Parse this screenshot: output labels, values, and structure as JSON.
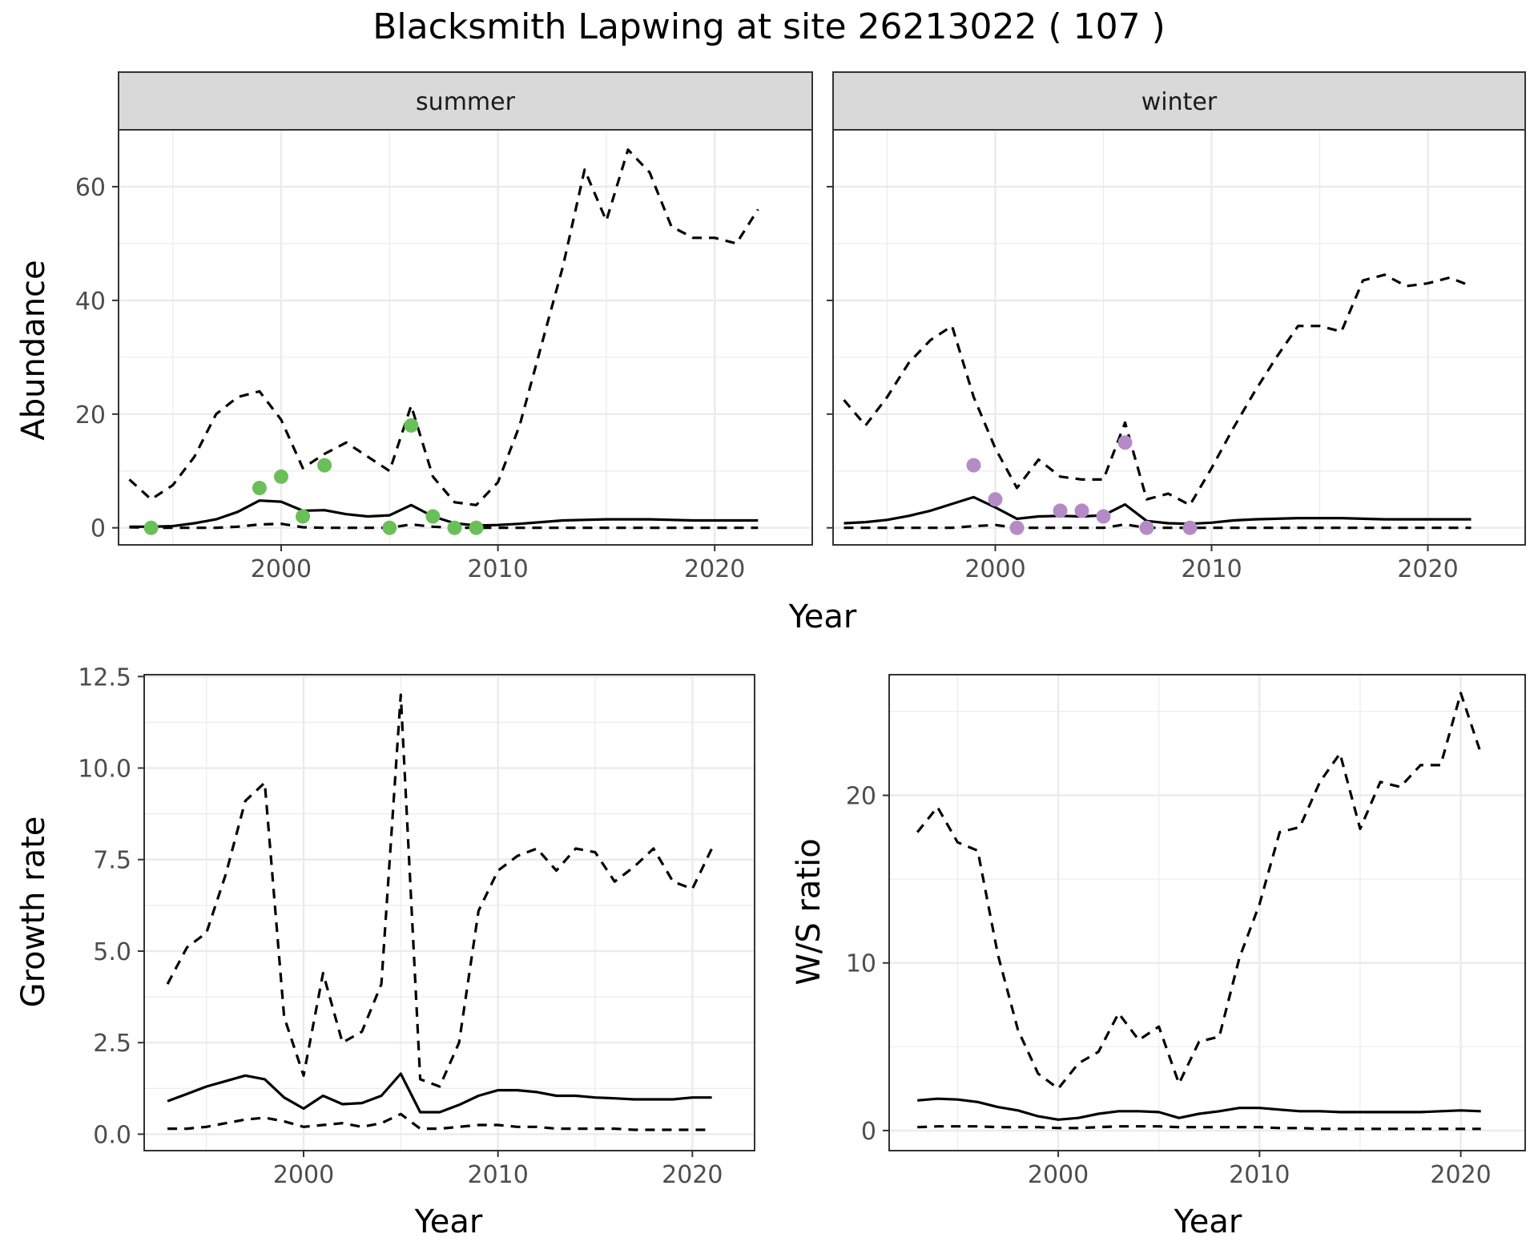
{
  "title": "Blacksmith Lapwing at site 26213022 ( 107 )",
  "style": {
    "summer_point_color": "#6bbf59",
    "winter_point_color": "#b58bc6",
    "strip_fill": "#d9d9d9",
    "grid_color": "#ebebeb",
    "line_color": "#000000"
  },
  "chart_data": [
    {
      "type": "line",
      "facet": "summer",
      "xlabel": "Year",
      "ylabel": "Abundance",
      "shared_xlabel": true,
      "xlim": [
        1992.5,
        2024.5
      ],
      "ylim": [
        -3,
        70
      ],
      "xticks": [
        2000,
        2010,
        2020
      ],
      "yticks": [
        0,
        20,
        40,
        60
      ],
      "ytick_labels": [
        "0",
        "20",
        "40",
        "60"
      ],
      "series": [
        {
          "role": "mean",
          "dash": "solid",
          "x": [
            1993,
            1994,
            1995,
            1996,
            1997,
            1998,
            1999,
            2000,
            2001,
            2002,
            2003,
            2004,
            2005,
            2006,
            2007,
            2008,
            2009,
            2010,
            2011,
            2012,
            2013,
            2014,
            2015,
            2016,
            2017,
            2018,
            2019,
            2020,
            2021,
            2022
          ],
          "y": [
            0.2,
            0.2,
            0.3,
            0.8,
            1.5,
            2.8,
            4.8,
            4.6,
            3.0,
            3.1,
            2.4,
            2.0,
            2.2,
            4.0,
            2.0,
            0.8,
            0.4,
            0.5,
            0.7,
            1.0,
            1.3,
            1.4,
            1.5,
            1.5,
            1.5,
            1.4,
            1.3,
            1.3,
            1.3,
            1.3
          ]
        },
        {
          "role": "upper",
          "dash": "dashed",
          "x": [
            1993,
            1994,
            1995,
            1996,
            1997,
            1998,
            1999,
            2000,
            2001,
            2002,
            2003,
            2004,
            2005,
            2006,
            2007,
            2008,
            2009,
            2010,
            2011,
            2012,
            2013,
            2014,
            2015,
            2016,
            2017,
            2018,
            2019,
            2020,
            2021,
            2022
          ],
          "y": [
            8.5,
            5,
            7.5,
            12.5,
            20,
            23,
            24,
            19,
            10.5,
            13,
            15,
            12.5,
            10,
            21.5,
            9,
            4.5,
            4,
            8,
            18,
            32,
            46,
            63,
            54,
            66.5,
            62.5,
            53,
            51,
            51,
            50,
            56
          ]
        },
        {
          "role": "lower",
          "dash": "dashed",
          "x": [
            1993,
            1994,
            1995,
            1996,
            1997,
            1998,
            1999,
            2000,
            2001,
            2002,
            2003,
            2004,
            2005,
            2006,
            2007,
            2008,
            2009,
            2010,
            2011,
            2012,
            2013,
            2014,
            2015,
            2016,
            2017,
            2018,
            2019,
            2020,
            2021,
            2022
          ],
          "y": [
            0.1,
            0,
            0,
            0,
            0,
            0.2,
            0.6,
            0.7,
            0.1,
            0,
            0,
            0,
            0,
            0.6,
            0.2,
            0,
            0,
            0,
            0,
            0,
            0,
            0,
            0,
            0,
            0,
            0,
            0,
            0,
            0,
            0
          ]
        }
      ],
      "points": {
        "x": [
          1994,
          1999,
          2000,
          2001,
          2002,
          2005,
          2006,
          2007,
          2008,
          2009
        ],
        "y": [
          0,
          7,
          9,
          2,
          11,
          0,
          18,
          2,
          0,
          0
        ]
      }
    },
    {
      "type": "line",
      "facet": "winter",
      "xlim": [
        1992.5,
        2024.5
      ],
      "ylim": [
        -3,
        70
      ],
      "xticks": [
        2000,
        2010,
        2020
      ],
      "yticks": [
        0,
        20,
        40,
        60
      ],
      "series": [
        {
          "role": "mean",
          "dash": "solid",
          "x": [
            1993,
            1994,
            1995,
            1996,
            1997,
            1998,
            1999,
            2000,
            2001,
            2002,
            2003,
            2004,
            2005,
            2006,
            2007,
            2008,
            2009,
            2010,
            2011,
            2012,
            2013,
            2014,
            2015,
            2016,
            2017,
            2018,
            2019,
            2020,
            2021,
            2022
          ],
          "y": [
            0.8,
            1.0,
            1.4,
            2.1,
            3.0,
            4.2,
            5.4,
            3.6,
            1.6,
            2.0,
            2.1,
            2.0,
            2.2,
            4.1,
            1.2,
            0.8,
            0.7,
            0.9,
            1.3,
            1.5,
            1.6,
            1.7,
            1.7,
            1.7,
            1.6,
            1.5,
            1.5,
            1.5,
            1.5,
            1.5
          ]
        },
        {
          "role": "upper",
          "dash": "dashed",
          "x": [
            1993,
            1994,
            1995,
            1996,
            1997,
            1998,
            1999,
            2000,
            2001,
            2002,
            2003,
            2004,
            2005,
            2006,
            2007,
            2008,
            2009,
            2010,
            2011,
            2012,
            2013,
            2014,
            2015,
            2016,
            2017,
            2018,
            2019,
            2020,
            2021,
            2022
          ],
          "y": [
            22.5,
            18,
            23,
            29,
            33,
            35.5,
            23,
            14,
            7,
            12,
            9,
            8.5,
            8.5,
            18.5,
            5,
            6,
            4,
            10.5,
            17.5,
            24,
            30,
            35.5,
            35.5,
            34.5,
            43.5,
            44.5,
            42.5,
            43,
            44,
            42.5
          ]
        },
        {
          "role": "lower",
          "dash": "dashed",
          "x": [
            1993,
            1994,
            1995,
            1996,
            1997,
            1998,
            1999,
            2000,
            2001,
            2002,
            2003,
            2004,
            2005,
            2006,
            2007,
            2008,
            2009,
            2010,
            2011,
            2012,
            2013,
            2014,
            2015,
            2016,
            2017,
            2018,
            2019,
            2020,
            2021,
            2022
          ],
          "y": [
            0,
            0,
            0,
            0,
            0,
            0,
            0.3,
            0.5,
            0,
            0,
            0,
            0,
            0,
            0.6,
            0,
            0,
            0,
            0,
            0,
            0,
            0,
            0,
            0,
            0,
            0,
            0,
            0,
            0,
            0,
            0
          ]
        }
      ],
      "points": {
        "x": [
          1999,
          2000,
          2001,
          2003,
          2004,
          2005,
          2006,
          2007,
          2009
        ],
        "y": [
          11,
          5,
          0,
          3,
          3,
          2,
          15,
          0,
          0
        ]
      }
    },
    {
      "type": "line",
      "xlabel": "Year",
      "ylabel": "Growth rate",
      "xlim": [
        1991.8,
        2023.2
      ],
      "ylim": [
        -0.45,
        12.55
      ],
      "xticks": [
        2000,
        2010,
        2020
      ],
      "yticks": [
        0,
        2.5,
        5,
        7.5,
        10,
        12.5
      ],
      "ytick_labels": [
        "0.0",
        "2.5",
        "5.0",
        "7.5",
        "10.0",
        "12.5"
      ],
      "series": [
        {
          "role": "mean",
          "dash": "solid",
          "x": [
            1993,
            1994,
            1995,
            1996,
            1997,
            1998,
            1999,
            2000,
            2001,
            2002,
            2003,
            2004,
            2005,
            2006,
            2007,
            2008,
            2009,
            2010,
            2011,
            2012,
            2013,
            2014,
            2015,
            2016,
            2017,
            2018,
            2019,
            2020,
            2021
          ],
          "y": [
            0.9,
            1.1,
            1.3,
            1.45,
            1.6,
            1.5,
            1.0,
            0.7,
            1.05,
            0.82,
            0.85,
            1.05,
            1.65,
            0.6,
            0.6,
            0.8,
            1.05,
            1.2,
            1.2,
            1.15,
            1.05,
            1.05,
            1.0,
            0.98,
            0.95,
            0.95,
            0.95,
            1.0,
            1.0
          ]
        },
        {
          "role": "upper",
          "dash": "dashed",
          "x": [
            1993,
            1994,
            1995,
            1996,
            1997,
            1998,
            1999,
            2000,
            2001,
            2002,
            2003,
            2004,
            2005,
            2006,
            2007,
            2008,
            2009,
            2010,
            2011,
            2012,
            2013,
            2014,
            2015,
            2016,
            2017,
            2018,
            2019,
            2020,
            2021
          ],
          "y": [
            4.1,
            5.1,
            5.5,
            7.1,
            9.1,
            9.6,
            3.2,
            1.6,
            4.4,
            2.5,
            2.8,
            4.1,
            12,
            1.5,
            1.3,
            2.5,
            6.1,
            7.2,
            7.6,
            7.8,
            7.2,
            7.8,
            7.7,
            6.9,
            7.3,
            7.8,
            6.9,
            6.7,
            7.8
          ]
        },
        {
          "role": "lower",
          "dash": "dashed",
          "x": [
            1993,
            1994,
            1995,
            1996,
            1997,
            1998,
            1999,
            2000,
            2001,
            2002,
            2003,
            2004,
            2005,
            2006,
            2007,
            2008,
            2009,
            2010,
            2011,
            2012,
            2013,
            2014,
            2015,
            2016,
            2017,
            2018,
            2019,
            2020,
            2021
          ],
          "y": [
            0.15,
            0.15,
            0.2,
            0.3,
            0.4,
            0.45,
            0.35,
            0.2,
            0.25,
            0.3,
            0.2,
            0.3,
            0.55,
            0.15,
            0.15,
            0.2,
            0.25,
            0.25,
            0.2,
            0.2,
            0.15,
            0.15,
            0.15,
            0.15,
            0.12,
            0.12,
            0.12,
            0.12,
            0.12
          ]
        }
      ]
    },
    {
      "type": "line",
      "xlabel": "Year",
      "ylabel": "W/S ratio",
      "xlim": [
        1991.6,
        2023.2
      ],
      "ylim": [
        -1.2,
        27.2
      ],
      "xticks": [
        2000,
        2010,
        2020
      ],
      "yticks": [
        0,
        10,
        20
      ],
      "ytick_labels": [
        "0",
        "10",
        "20"
      ],
      "series": [
        {
          "role": "mean",
          "dash": "solid",
          "x": [
            1993,
            1994,
            1995,
            1996,
            1997,
            1998,
            1999,
            2000,
            2001,
            2002,
            2003,
            2004,
            2005,
            2006,
            2007,
            2008,
            2009,
            2010,
            2011,
            2012,
            2013,
            2014,
            2015,
            2016,
            2017,
            2018,
            2019,
            2020,
            2021
          ],
          "y": [
            1.8,
            1.9,
            1.85,
            1.7,
            1.4,
            1.2,
            0.85,
            0.65,
            0.75,
            1.0,
            1.15,
            1.15,
            1.1,
            0.75,
            1.0,
            1.15,
            1.35,
            1.35,
            1.25,
            1.15,
            1.15,
            1.1,
            1.1,
            1.1,
            1.1,
            1.1,
            1.15,
            1.2,
            1.15
          ]
        },
        {
          "role": "upper",
          "dash": "dashed",
          "x": [
            1993,
            1994,
            1995,
            1996,
            1997,
            1998,
            1999,
            2000,
            2001,
            2002,
            2003,
            2004,
            2005,
            2006,
            2007,
            2008,
            2009,
            2010,
            2011,
            2012,
            2013,
            2014,
            2015,
            2016,
            2017,
            2018,
            2019,
            2020,
            2021
          ],
          "y": [
            17.8,
            19.3,
            17.2,
            16.7,
            10.5,
            6,
            3.4,
            2.5,
            4,
            4.7,
            7,
            5.4,
            6.2,
            2.8,
            5.3,
            5.6,
            10.3,
            13.5,
            17.8,
            18.1,
            20.8,
            22.5,
            18,
            20.8,
            20.5,
            21.8,
            21.8,
            26.1,
            22.5
          ]
        },
        {
          "role": "lower",
          "dash": "dashed",
          "x": [
            1993,
            1994,
            1995,
            1996,
            1997,
            1998,
            1999,
            2000,
            2001,
            2002,
            2003,
            2004,
            2005,
            2006,
            2007,
            2008,
            2009,
            2010,
            2011,
            2012,
            2013,
            2014,
            2015,
            2016,
            2017,
            2018,
            2019,
            2020,
            2021
          ],
          "y": [
            0.2,
            0.25,
            0.25,
            0.25,
            0.2,
            0.2,
            0.2,
            0.15,
            0.15,
            0.2,
            0.25,
            0.25,
            0.25,
            0.2,
            0.2,
            0.2,
            0.2,
            0.2,
            0.15,
            0.15,
            0.1,
            0.1,
            0.1,
            0.1,
            0.1,
            0.1,
            0.1,
            0.1,
            0.1
          ]
        }
      ]
    }
  ]
}
